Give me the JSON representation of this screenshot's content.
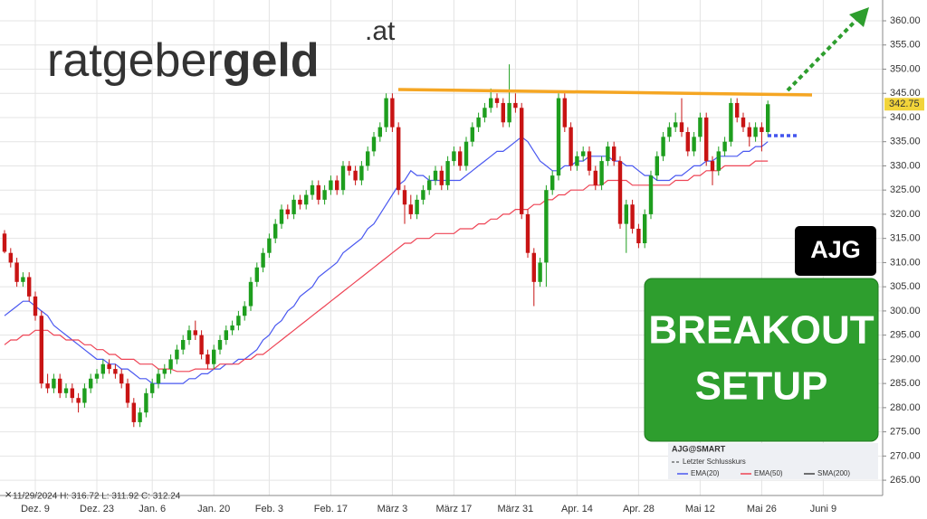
{
  "chart_data": {
    "type": "candlestick",
    "categories": [
      null,
      null,
      null,
      null,
      null,
      "Dez. 9",
      null,
      null,
      null,
      null,
      null,
      null,
      null,
      null,
      null,
      "Dez. 23",
      null,
      null,
      null,
      null,
      null,
      null,
      null,
      null,
      "Jan. 6",
      null,
      null,
      null,
      null,
      null,
      null,
      null,
      null,
      null,
      "Jan. 20",
      null,
      null,
      null,
      null,
      null,
      null,
      null,
      null,
      "Feb. 3",
      null,
      null,
      null,
      null,
      null,
      null,
      null,
      null,
      null,
      "Feb. 17",
      null,
      null,
      null,
      null,
      null,
      null,
      null,
      null,
      null,
      "März 3",
      null,
      null,
      null,
      null,
      null,
      null,
      null,
      null,
      null,
      "März 17",
      null,
      null,
      null,
      null,
      null,
      null,
      null,
      null,
      null,
      "März 31",
      null,
      null,
      null,
      null,
      null,
      null,
      null,
      null,
      null,
      "Apr. 14",
      null,
      null,
      null,
      null,
      null,
      null,
      null,
      null,
      null,
      "Apr. 28",
      null,
      null,
      null,
      null,
      null,
      null,
      null,
      null,
      null,
      "Mai 12",
      null,
      null,
      null,
      null,
      null,
      null,
      null,
      null,
      null,
      "Mai 26",
      null,
      null,
      null,
      null,
      null,
      null,
      null,
      null,
      null,
      "Juni 9",
      null,
      null,
      null,
      null,
      null,
      null,
      null,
      null,
      null
    ],
    "ohlc": [
      [
        316,
        316.72,
        311.92,
        312.24
      ],
      [
        312,
        313,
        309,
        310
      ],
      [
        310,
        311,
        305,
        306
      ],
      [
        306,
        308,
        305,
        307
      ],
      [
        307,
        308,
        302,
        303
      ],
      [
        303,
        304,
        298,
        299
      ],
      [
        299,
        300,
        284,
        285
      ],
      [
        285,
        287,
        283,
        284
      ],
      [
        284,
        287,
        283,
        286
      ],
      [
        286,
        287,
        282,
        283
      ],
      [
        283,
        285,
        282,
        284
      ],
      [
        284,
        285,
        281,
        282
      ],
      [
        282,
        283,
        279,
        281
      ],
      [
        281,
        285,
        280,
        284
      ],
      [
        284,
        287,
        283,
        286
      ],
      [
        286,
        288,
        285,
        287
      ],
      [
        287,
        290,
        286,
        289
      ],
      [
        289,
        290,
        287,
        288
      ],
      [
        288,
        289,
        286,
        287
      ],
      [
        287,
        288,
        284,
        285
      ],
      [
        285,
        286,
        280,
        281
      ],
      [
        281,
        282,
        276,
        277
      ],
      [
        277,
        280,
        276,
        279
      ],
      [
        279,
        284,
        278,
        283
      ],
      [
        283,
        286,
        282,
        285
      ],
      [
        285,
        288,
        284,
        287
      ],
      [
        287,
        289,
        286,
        288
      ],
      [
        288,
        291,
        287,
        290
      ],
      [
        290,
        293,
        289,
        292
      ],
      [
        292,
        295,
        291,
        294
      ],
      [
        294,
        297,
        293,
        296
      ],
      [
        296,
        298,
        294,
        295
      ],
      [
        295,
        296,
        290,
        291
      ],
      [
        291,
        292,
        288,
        289
      ],
      [
        289,
        293,
        288,
        292
      ],
      [
        292,
        295,
        291,
        294
      ],
      [
        294,
        297,
        293,
        296
      ],
      [
        296,
        298,
        295,
        297
      ],
      [
        297,
        300,
        296,
        299
      ],
      [
        299,
        302,
        298,
        301
      ],
      [
        301,
        307,
        300,
        306
      ],
      [
        306,
        310,
        305,
        309
      ],
      [
        309,
        313,
        308,
        312
      ],
      [
        312,
        316,
        311,
        315
      ],
      [
        315,
        319,
        314,
        318
      ],
      [
        318,
        322,
        317,
        321
      ],
      [
        321,
        322,
        319,
        320
      ],
      [
        320,
        324,
        319,
        323
      ],
      [
        323,
        324,
        321,
        322
      ],
      [
        322,
        325,
        321,
        324
      ],
      [
        324,
        327,
        323,
        326
      ],
      [
        326,
        327,
        322,
        323
      ],
      [
        323,
        326,
        322,
        325
      ],
      [
        325,
        328,
        324,
        327
      ],
      [
        327,
        328,
        324,
        325
      ],
      [
        325,
        331,
        324,
        330
      ],
      [
        330,
        331,
        328,
        329
      ],
      [
        329,
        330,
        326,
        327
      ],
      [
        327,
        331,
        326,
        330
      ],
      [
        330,
        334,
        329,
        333
      ],
      [
        333,
        337,
        332,
        336
      ],
      [
        336,
        339,
        335,
        338
      ],
      [
        338,
        345,
        337,
        344
      ],
      [
        344,
        345,
        337,
        338
      ],
      [
        338,
        339,
        324,
        325
      ],
      [
        325,
        326,
        318,
        322
      ],
      [
        322,
        324,
        319,
        320
      ],
      [
        320,
        324,
        319,
        323
      ],
      [
        323,
        326,
        322,
        325
      ],
      [
        325,
        328,
        324,
        327
      ],
      [
        327,
        330,
        326,
        329
      ],
      [
        329,
        330,
        325,
        326
      ],
      [
        326,
        332,
        325,
        331
      ],
      [
        331,
        334,
        330,
        333
      ],
      [
        333,
        334,
        329,
        330
      ],
      [
        330,
        336,
        329,
        335
      ],
      [
        335,
        339,
        334,
        338
      ],
      [
        338,
        341,
        337,
        340
      ],
      [
        340,
        343,
        339,
        342
      ],
      [
        342,
        346,
        341,
        344
      ],
      [
        344,
        345,
        342,
        343
      ],
      [
        343,
        344,
        338,
        339
      ],
      [
        339,
        351,
        338,
        343
      ],
      [
        343,
        345,
        341,
        342
      ],
      [
        342,
        343,
        319,
        320
      ],
      [
        320,
        321,
        311,
        312
      ],
      [
        312,
        313,
        301,
        306
      ],
      [
        306,
        311,
        305,
        310
      ],
      [
        310,
        326,
        305,
        325
      ],
      [
        325,
        329,
        324,
        328
      ],
      [
        328,
        345,
        327,
        344
      ],
      [
        344,
        345,
        337,
        338
      ],
      [
        338,
        339,
        329,
        330
      ],
      [
        330,
        333,
        329,
        332
      ],
      [
        332,
        334,
        331,
        333
      ],
      [
        333,
        334,
        328,
        329
      ],
      [
        329,
        330,
        325,
        326
      ],
      [
        326,
        332,
        325,
        331
      ],
      [
        331,
        335,
        330,
        334
      ],
      [
        334,
        335,
        330,
        331
      ],
      [
        331,
        332,
        317,
        318
      ],
      [
        318,
        323,
        312,
        322
      ],
      [
        322,
        323,
        316,
        317
      ],
      [
        317,
        318,
        313,
        314
      ],
      [
        314,
        321,
        313,
        320
      ],
      [
        320,
        329,
        319,
        328
      ],
      [
        328,
        333,
        327,
        332
      ],
      [
        332,
        337,
        331,
        336
      ],
      [
        336,
        339,
        335,
        338
      ],
      [
        338,
        341,
        337,
        339
      ],
      [
        339,
        344,
        336,
        337
      ],
      [
        337,
        338,
        332,
        333
      ],
      [
        333,
        337,
        332,
        336
      ],
      [
        336,
        341,
        335,
        340
      ],
      [
        340,
        341,
        330,
        331
      ],
      [
        331,
        332,
        326,
        329
      ],
      [
        329,
        334,
        328,
        333
      ],
      [
        333,
        336,
        332,
        335
      ],
      [
        335,
        344,
        334,
        343
      ],
      [
        343,
        344,
        339,
        340
      ],
      [
        340,
        341,
        337,
        338
      ],
      [
        338,
        339,
        334,
        336
      ],
      [
        336,
        339,
        335,
        338
      ],
      [
        338,
        339,
        333,
        337
      ],
      [
        337,
        343.5,
        336,
        342.75
      ],
      null,
      null,
      null,
      null,
      null,
      null,
      null,
      null,
      null,
      null,
      null,
      null,
      null,
      null,
      null,
      null,
      null,
      null
    ],
    "up_color": "#1e9e1e",
    "down_color": "#c81414",
    "series": [
      {
        "name": "EMA(20)",
        "color": "#4a58f0",
        "values": [
          299,
          300,
          301,
          302,
          302,
          301,
          300,
          299,
          297,
          296,
          295,
          294,
          293,
          292,
          291,
          290,
          290,
          289,
          289,
          288,
          288,
          287,
          286,
          286,
          285,
          285,
          285,
          285,
          285,
          285,
          286,
          286,
          287,
          287,
          288,
          288,
          289,
          289,
          290,
          290,
          291,
          292,
          294,
          295,
          297,
          298,
          300,
          301,
          303,
          304,
          305,
          307,
          308,
          309,
          310,
          312,
          313,
          314,
          315,
          317,
          318,
          320,
          322,
          324,
          326,
          327,
          329,
          328,
          328,
          327,
          327,
          327,
          327,
          327,
          327,
          328,
          329,
          330,
          331,
          332,
          333,
          333,
          334,
          335,
          336,
          335,
          333,
          331,
          330,
          329,
          329,
          330,
          330,
          331,
          331,
          332,
          332,
          332,
          332,
          331,
          331,
          330,
          330,
          329,
          328,
          328,
          327,
          327,
          327,
          328,
          328,
          329,
          330,
          330,
          331,
          331,
          332,
          332,
          332,
          332,
          333,
          333,
          334,
          334,
          335,
          null,
          null,
          null,
          null,
          null,
          null,
          null,
          null,
          null,
          null,
          null,
          null,
          null,
          null,
          null,
          null,
          null,
          null
        ]
      },
      {
        "name": "EMA(50)",
        "color": "#ee4455",
        "values": [
          293,
          294,
          294,
          295,
          295,
          296,
          296,
          296,
          295,
          295,
          294,
          294,
          294,
          293,
          293,
          292,
          292,
          291,
          291,
          290,
          290,
          290,
          289,
          289,
          289,
          288,
          288,
          288,
          287.5,
          287.5,
          287.5,
          288,
          288,
          288,
          288,
          289,
          289,
          289,
          289,
          290,
          290,
          291,
          291,
          292,
          293,
          294,
          295,
          296,
          297,
          298,
          299,
          300,
          301,
          302,
          303,
          304,
          305,
          306,
          307,
          308,
          309,
          310,
          311,
          312,
          313,
          314,
          314,
          315,
          315,
          315,
          316,
          316,
          316,
          316,
          317,
          317,
          317,
          318,
          318,
          319,
          319,
          320,
          320,
          321,
          321,
          321,
          322,
          322,
          323,
          323,
          324,
          324,
          325,
          325,
          325,
          326,
          326,
          326,
          327,
          327,
          327,
          327,
          326,
          326,
          326,
          326,
          326,
          326,
          326,
          327,
          327,
          327,
          328,
          328,
          329,
          329,
          329,
          330,
          330,
          330,
          330,
          330,
          331,
          331,
          331,
          null,
          null,
          null,
          null,
          null,
          null,
          null,
          null,
          null,
          null,
          null,
          null,
          null,
          null,
          null,
          null,
          null,
          null
        ]
      },
      {
        "name": "SMA(200)",
        "color": "#444444"
      }
    ],
    "ylim": [
      262.4,
      364.3
    ],
    "yticks": [
      {
        "value": 265,
        "label": "265.00"
      },
      {
        "value": 270,
        "label": "270.00"
      },
      {
        "value": 275,
        "label": "275.00"
      },
      {
        "value": 280,
        "label": "280.00"
      },
      {
        "value": 285,
        "label": "285.00"
      },
      {
        "value": 290,
        "label": "290.00"
      },
      {
        "value": 295,
        "label": "295.00"
      },
      {
        "value": 300,
        "label": "300.00"
      },
      {
        "value": 305,
        "label": "305.00"
      },
      {
        "value": 310,
        "label": "310.00"
      },
      {
        "value": 315,
        "label": "315.00"
      },
      {
        "value": 320,
        "label": "320.00"
      },
      {
        "value": 325,
        "label": "325.00"
      },
      {
        "value": 330,
        "label": "330.00"
      },
      {
        "value": 335,
        "label": "335.00"
      },
      {
        "value": 340,
        "label": "340.00"
      },
      {
        "value": 345,
        "label": "345.00"
      },
      {
        "value": 350,
        "label": "350.00"
      },
      {
        "value": 355,
        "label": "355.00"
      },
      {
        "value": 360,
        "label": "360.00"
      }
    ],
    "last_price": 342.75,
    "grid": true,
    "symbol": "AJG@SMART",
    "last_close_label": "Letzter Schlusskurs",
    "info": "11/29/2024 H: 316.72 L: 311.92 C: 312.24"
  },
  "logo": {
    "main": "ratgeber",
    "bold": "geld",
    "suffix": ".at"
  },
  "badge": {
    "ticker": "AJG",
    "line1": "BREAKOUT",
    "line2": "SETUP"
  }
}
